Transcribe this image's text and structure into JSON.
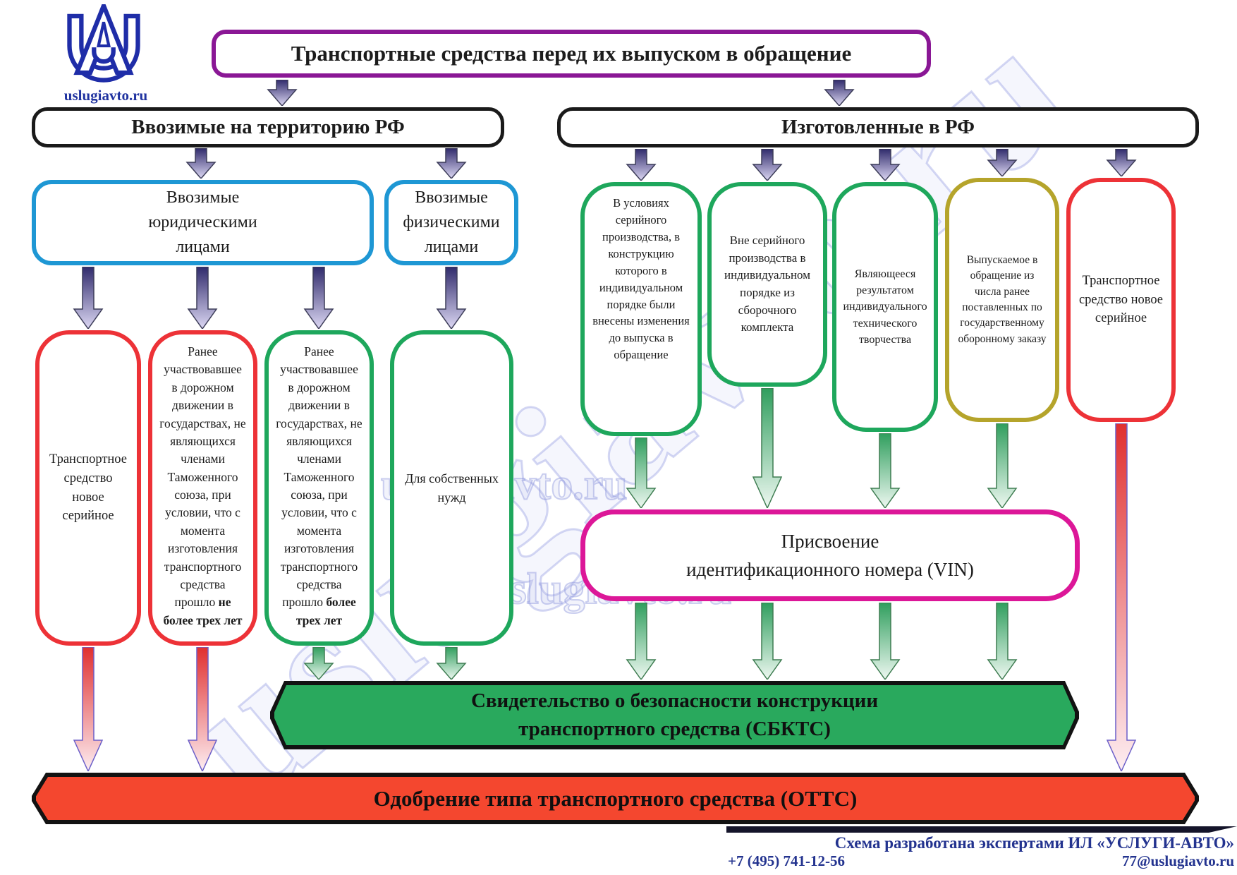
{
  "logo": {
    "site": "uslugiavto.ru"
  },
  "title": "Транспортные средства перед их выпуском в обращение",
  "imported": {
    "header": "Ввозимые на территорию РФ",
    "legal": "Ввозимые юридическими лицами",
    "individual": "Ввозимые физическими лицами",
    "case_new_serial": "Транспортное средство новое серийное",
    "case_used_lead": "Ранее участвовавшее в дорожном движении в государствах, не являющихся членами Таможенного союза, при условии, что с момента изготовления транспортного средства прошло",
    "case_used_max3_bold": "не более трех лет",
    "case_used_over3_bold": "более трех лет",
    "case_own_needs": "Для собственных нужд"
  },
  "manufactured": {
    "header": "Изготовленные в РФ",
    "case_serial_modified": "В условиях серийного производства, в конструкцию которого в индивидуальном порядке были внесены изменения до выпуска в обращение",
    "case_kit": "Вне серийного производства в индивидуальном порядке из сборочного комплекта",
    "case_individual_creation": "Являющееся результатом индивидуального технического творчества",
    "case_defense_order": "Выпускаемое в обращение из числа ранее поставленных по государственному оборонному заказу",
    "case_new_serial": "Транспортное средство новое серийное"
  },
  "vin": {
    "line1": "Присвоение",
    "line2": "идентификационного номера (VIN)"
  },
  "sbkts": {
    "line1": "Свидетельство о безопасности конструкции",
    "line2": "транспортного средства (СБКТС)"
  },
  "otts": "Одобрение типа транспортного средства (ОТТС)",
  "footer": {
    "credit": "Схема разработана экспертами ИЛ «УСЛУГИ-АВТО»",
    "phone": "+7 (495) 741-12-56",
    "email": "77@uslugiavto.ru"
  },
  "watermark": "uslugiavto.ru",
  "colors": {
    "title_purple": "#8a1795",
    "group_blue": "#1e97d4",
    "case_green": "#1ea75c",
    "case_red": "#ed3237",
    "case_olive": "#b5a42b",
    "vin_magenta": "#dc1798",
    "sbkts_fill": "#29a95d",
    "otts_fill": "#f4472f",
    "credit_blue": "#23338f"
  }
}
